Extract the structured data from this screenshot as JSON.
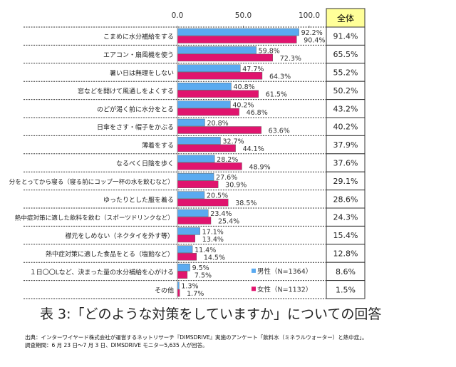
{
  "chart_data": {
    "type": "bar",
    "orientation": "horizontal",
    "title": "表 3:「どのような対策をしていますか」についての回答",
    "xlim": [
      0,
      100
    ],
    "xticks": [
      "0.0",
      "50.0",
      "100.0"
    ],
    "categories": [
      "こまめに水分補給をする",
      "エアコン・扇風機を使う",
      "暑い日は無理をしない",
      "窓などを開けて風通しをよくする",
      "のどが渇く前に水分をとる",
      "日傘をさす・帽子をかぶる",
      "薄着をする",
      "なるべく日陰を歩く",
      "分をとってから寝る（寝る前にコップ一杯の水を飲むなど）",
      "ゆったりとした服を着る",
      "熱中症対策に適した飲料を飲む（スポーツドリンクなど）",
      "襟元をしめない（ネクタイを外す等）",
      "熱中症対策に適した食品をとる（塩飴など）",
      "１日〇〇Lなど、決まった量の水分補給を心がける",
      "その他"
    ],
    "series": [
      {
        "name": "男性（N=1364）",
        "color": "#5aaaf0",
        "values": [
          92.2,
          59.8,
          47.7,
          40.8,
          40.2,
          20.8,
          32.7,
          28.2,
          27.6,
          20.5,
          23.4,
          17.1,
          11.4,
          9.5,
          1.3
        ]
      },
      {
        "name": "女性（N=1132）",
        "color": "#e0146e",
        "values": [
          90.4,
          72.3,
          64.3,
          61.5,
          46.8,
          63.6,
          44.1,
          48.9,
          30.9,
          38.5,
          25.4,
          13.4,
          14.5,
          7.5,
          1.7
        ]
      }
    ],
    "total_header": "全体",
    "total": [
      "91.4%",
      "65.5%",
      "55.2%",
      "50.2%",
      "43.2%",
      "40.2%",
      "37.9%",
      "37.6%",
      "29.1%",
      "28.6%",
      "24.3%",
      "15.4%",
      "12.8%",
      "8.6%",
      "1.5%"
    ],
    "legend_placement": "bottom-right"
  },
  "notes": {
    "source": "出典：インターワイヤード株式会社が運営するネットリサーチ『DIMSDRIVE』実施のアンケート「飲料水（ミネラルウォーター）と熱中症」。",
    "period": "調査期間：6 月 23 日〜7 月 3 日、DIMSDRIVE モニター5,635 人が回答。"
  }
}
